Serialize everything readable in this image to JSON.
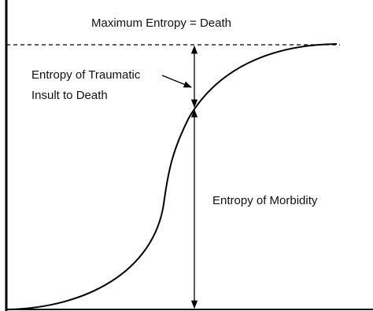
{
  "header": {
    "title": "Maximum Entropy = Death"
  },
  "labels": {
    "traumatic": [
      "Entropy of Traumatic",
      "Insult to Death"
    ],
    "morbidity": "Entropy of Morbidity"
  }
}
